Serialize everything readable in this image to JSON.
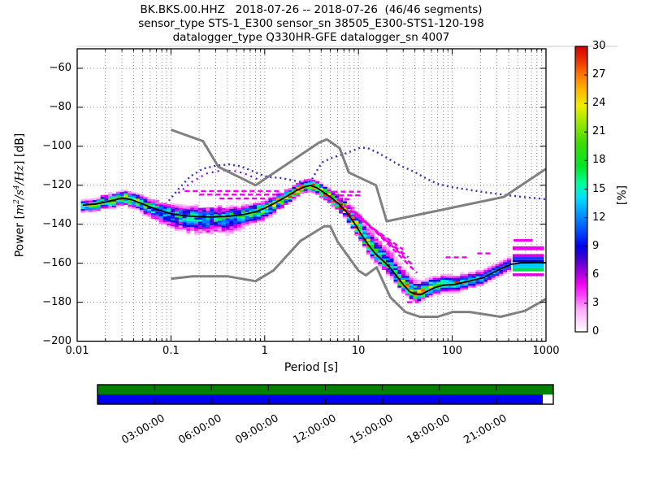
{
  "title": {
    "line1": "BK.BKS.00.HHZ   2018-07-26 -- 2018-07-26  (46/46 segments)",
    "line2": "sensor_type STS-1_E300 sensor_sn 38505_E300-STS1-120-198",
    "line3": "datalogger_type Q330HR-GFE datalogger_sn 4007"
  },
  "axes": {
    "xlabel": "Period [s]",
    "colorbar_label": "[%]",
    "ylabel_parts": {
      "p1": "Power [",
      "m1": "m",
      "e1": "2",
      "m2": "/s",
      "e2": "4",
      "m3": "/Hz",
      "p2": "] [dB]"
    }
  },
  "chart_data": {
    "type": "heatmap",
    "title": "BK.BKS.00.HHZ 2018-07-26 -- 2018-07-26 (46/46 segments)",
    "xlabel": "Period [s]",
    "ylabel": "Power [m^2/s^4/Hz] [dB]",
    "x_axis": {
      "scale": "log",
      "min": 0.01,
      "max": 1000,
      "tick_values": [
        0.01,
        0.1,
        1,
        10,
        100,
        1000
      ],
      "tick_labels": [
        "0.01",
        "0.1",
        "1",
        "10",
        "100",
        "1000"
      ]
    },
    "y_axis": {
      "min": -200,
      "max": -50,
      "tick_values": [
        -60,
        -80,
        -100,
        -120,
        -140,
        -160,
        -180,
        -200
      ],
      "tick_labels": [
        "−60",
        "−80",
        "−100",
        "−120",
        "−140",
        "−160",
        "−180",
        "−200"
      ]
    },
    "colorbar": {
      "min": 0,
      "max": 30,
      "label": "[%]",
      "tick_values": [
        0,
        3,
        6,
        9,
        12,
        15,
        18,
        21,
        24,
        27,
        30
      ],
      "tick_labels": [
        "0",
        "3",
        "6",
        "9",
        "12",
        "15",
        "18",
        "21",
        "24",
        "27",
        "30"
      ],
      "stops": [
        [
          0,
          "#ffffff"
        ],
        [
          0.08,
          "#ffaaff"
        ],
        [
          0.13,
          "#ff3cff"
        ],
        [
          0.17,
          "#ee00ee"
        ],
        [
          0.22,
          "#8c00dc"
        ],
        [
          0.26,
          "#3c00d2"
        ],
        [
          0.3,
          "#0000ee"
        ],
        [
          0.36,
          "#0055ff"
        ],
        [
          0.42,
          "#00a0ff"
        ],
        [
          0.47,
          "#00e1ff"
        ],
        [
          0.52,
          "#00ff96"
        ],
        [
          0.58,
          "#00e628"
        ],
        [
          0.66,
          "#3cdc00"
        ],
        [
          0.73,
          "#96e600"
        ],
        [
          0.79,
          "#eeee00"
        ],
        [
          0.85,
          "#ffb400"
        ],
        [
          0.9,
          "#ff7800"
        ],
        [
          0.95,
          "#eb3200"
        ],
        [
          1,
          "#d70000"
        ]
      ]
    },
    "mode_line": [
      [
        0.0115,
        -130.2
      ],
      [
        0.016,
        -129.6
      ],
      [
        0.022,
        -128.2
      ],
      [
        0.03,
        -126.6
      ],
      [
        0.038,
        -127.4
      ],
      [
        0.05,
        -129.6
      ],
      [
        0.07,
        -132.4
      ],
      [
        0.1,
        -134.6
      ],
      [
        0.15,
        -135.8
      ],
      [
        0.25,
        -136.3
      ],
      [
        0.4,
        -136.0
      ],
      [
        0.6,
        -135.0
      ],
      [
        0.8,
        -133.6
      ],
      [
        1.0,
        -131.8
      ],
      [
        1.3,
        -129.0
      ],
      [
        1.7,
        -125.8
      ],
      [
        2.2,
        -122.6
      ],
      [
        2.7,
        -120.7
      ],
      [
        3.1,
        -120.1
      ],
      [
        3.6,
        -121.3
      ],
      [
        4.3,
        -123.8
      ],
      [
        5.2,
        -126.6
      ],
      [
        6.2,
        -129.6
      ],
      [
        7.4,
        -133.6
      ],
      [
        8.9,
        -139.0
      ],
      [
        10.5,
        -144.5
      ],
      [
        12.5,
        -150.0
      ],
      [
        15,
        -155.0
      ],
      [
        18,
        -158.5
      ],
      [
        21,
        -161.5
      ],
      [
        25,
        -166.0
      ],
      [
        30,
        -171.0
      ],
      [
        35,
        -174.5
      ],
      [
        40,
        -175.8
      ],
      [
        47,
        -175.9
      ],
      [
        55,
        -174.2
      ],
      [
        65,
        -172.5
      ],
      [
        80,
        -171.3
      ],
      [
        107,
        -170.9
      ],
      [
        150,
        -169.2
      ],
      [
        215,
        -167.4
      ],
      [
        310,
        -163.4
      ],
      [
        430,
        -160.5
      ],
      [
        540,
        -159.8
      ],
      [
        1000,
        -159.7
      ]
    ],
    "nlnm": [
      [
        0.1,
        -168.0
      ],
      [
        0.17,
        -166.7
      ],
      [
        0.4,
        -166.7
      ],
      [
        0.8,
        -169.2
      ],
      [
        1.24,
        -163.7
      ],
      [
        2.4,
        -148.6
      ],
      [
        4.3,
        -141.1
      ],
      [
        5.0,
        -141.1
      ],
      [
        6.0,
        -149.0
      ],
      [
        10.0,
        -163.8
      ],
      [
        12.0,
        -166.2
      ],
      [
        15.6,
        -162.1
      ],
      [
        21.9,
        -177.5
      ],
      [
        31.6,
        -185.0
      ],
      [
        45.0,
        -187.5
      ],
      [
        70.0,
        -187.5
      ],
      [
        101.0,
        -185.0
      ],
      [
        154.0,
        -185.0
      ],
      [
        328.0,
        -187.5
      ],
      [
        600.0,
        -184.4
      ],
      [
        1000,
        -178.3
      ]
    ],
    "nhnm": [
      [
        0.1,
        -91.5
      ],
      [
        0.22,
        -97.4
      ],
      [
        0.32,
        -110.5
      ],
      [
        0.8,
        -120.0
      ],
      [
        3.8,
        -98.1
      ],
      [
        4.6,
        -96.5
      ],
      [
        6.3,
        -101.0
      ],
      [
        7.9,
        -113.5
      ],
      [
        15.4,
        -120.0
      ],
      [
        20.0,
        -138.5
      ],
      [
        354.8,
        -126.0
      ],
      [
        1000,
        -111.6
      ]
    ],
    "eq_trace": [
      [
        0.095,
        -128
      ],
      [
        0.12,
        -122
      ],
      [
        0.16,
        -115.5
      ],
      [
        0.22,
        -111.5
      ],
      [
        0.3,
        -110.0
      ],
      [
        0.42,
        -109.3
      ],
      [
        0.55,
        -110.3
      ],
      [
        0.7,
        -112.2
      ],
      [
        0.9,
        -114.5
      ],
      [
        1.1,
        -115.8
      ],
      [
        1.5,
        -116.3
      ],
      [
        2.0,
        -117.5
      ],
      [
        2.6,
        -118.6
      ],
      [
        3.1,
        -118.0
      ],
      [
        3.6,
        -112.5
      ],
      [
        4.1,
        -108.3
      ],
      [
        5.2,
        -106.0
      ],
      [
        7.5,
        -103.5
      ],
      [
        10.5,
        -100.7
      ],
      [
        12.5,
        -100.9
      ],
      [
        16,
        -103.3
      ],
      [
        21,
        -106.5
      ],
      [
        28,
        -110.0
      ],
      [
        39,
        -113.0
      ],
      [
        55,
        -117.0
      ],
      [
        70,
        -119.3
      ],
      [
        100,
        -121.0
      ],
      [
        150,
        -122.3
      ],
      [
        230,
        -123.7
      ],
      [
        350,
        -124.8
      ],
      [
        550,
        -126.0
      ],
      [
        800,
        -126.7
      ],
      [
        1000,
        -127.2
      ]
    ],
    "eq_trace2": [
      [
        0.12,
        -124
      ],
      [
        0.17,
        -118
      ],
      [
        0.24,
        -114
      ],
      [
        0.35,
        -112.3
      ],
      [
        0.5,
        -112.8
      ],
      [
        0.65,
        -114.5
      ],
      [
        0.85,
        -117.0
      ]
    ],
    "outlier_segments": [
      [
        [
          0.14,
          -123
        ],
        [
          1.45,
          -123
        ]
      ],
      [
        [
          0.2,
          -124.8
        ],
        [
          1.6,
          -124.8
        ]
      ],
      [
        [
          0.33,
          -126.8
        ],
        [
          1.25,
          -126.8
        ]
      ],
      [
        [
          5.3,
          -123.3
        ],
        [
          10.5,
          -123.3
        ]
      ],
      [
        [
          6.2,
          -125.2
        ],
        [
          11,
          -125.2
        ]
      ],
      [
        [
          4.8,
          -127.2
        ],
        [
          8.6,
          -127.2
        ]
      ],
      [
        [
          4.6,
          -125.5
        ],
        [
          30,
          -153
        ]
      ],
      [
        [
          6.0,
          -127.5
        ],
        [
          34,
          -157
        ]
      ],
      [
        [
          7.8,
          -130.5
        ],
        [
          38,
          -161
        ]
      ],
      [
        [
          10,
          -135
        ],
        [
          42,
          -165
        ]
      ],
      [
        [
          13,
          -141
        ],
        [
          30,
          -155.5
        ]
      ],
      [
        [
          185,
          -155
        ],
        [
          258,
          -155
        ]
      ],
      [
        [
          85,
          -157
        ],
        [
          150,
          -157
        ]
      ],
      [
        [
          450,
          -148.2
        ],
        [
          700,
          -148.2
        ]
      ],
      [
        [
          33,
          -180
        ],
        [
          44,
          -180
        ]
      ]
    ],
    "right_bands": [
      {
        "p": [
          460,
          720
        ],
        "db": [
          -147.6,
          -148.9
        ],
        "color": "#ee00ee"
      },
      {
        "p": [
          440,
          950
        ],
        "db": [
          -151.3,
          -153.3
        ],
        "color": "#ee00ee"
      },
      {
        "p": [
          440,
          950
        ],
        "db": [
          -155.3,
          -156.8
        ],
        "color": "#dd00dd"
      },
      {
        "p": [
          440,
          950
        ],
        "db": [
          -156.8,
          -158.4
        ],
        "color": "#2233ff"
      },
      {
        "p": [
          440,
          950
        ],
        "db": [
          -158.4,
          -159.5
        ],
        "color": "#0000bb"
      },
      {
        "p": [
          440,
          950
        ],
        "db": [
          -160.1,
          -162.6
        ],
        "color": "#00ccff"
      },
      {
        "p": [
          440,
          950
        ],
        "db": [
          -162.6,
          -164.2
        ],
        "color": "#00dd55"
      },
      {
        "p": [
          440,
          950
        ],
        "db": [
          -165.2,
          -166.6
        ],
        "color": "#dd00dd"
      }
    ],
    "extra_cells": [
      {
        "p": 112,
        "db": -169.8,
        "color": "#dd2200"
      },
      {
        "p": 121,
        "db": -170.3,
        "color": "#dd2200"
      },
      {
        "p": 131,
        "db": -170.0,
        "color": "#ee8800"
      }
    ],
    "hist": {
      "p_start": 0.0115,
      "p_end": 430,
      "step_decade": 0.0417,
      "cell_db": 1,
      "seed": 7,
      "pmax_profile": [
        [
          0.0115,
          18
        ],
        [
          0.02,
          20
        ],
        [
          0.03,
          24
        ],
        [
          0.045,
          18
        ],
        [
          0.07,
          14
        ],
        [
          0.12,
          13
        ],
        [
          0.3,
          13
        ],
        [
          0.6,
          15
        ],
        [
          1.0,
          18
        ],
        [
          1.5,
          23
        ],
        [
          2.2,
          27
        ],
        [
          3.0,
          30
        ],
        [
          4.5,
          29
        ],
        [
          6,
          27
        ],
        [
          8,
          26
        ],
        [
          12,
          22
        ],
        [
          16,
          16
        ],
        [
          22,
          14
        ],
        [
          28,
          20
        ],
        [
          35,
          27
        ],
        [
          45,
          24
        ],
        [
          55,
          21
        ],
        [
          80,
          18
        ],
        [
          120,
          16
        ],
        [
          200,
          14
        ],
        [
          300,
          12
        ],
        [
          430,
          11
        ]
      ],
      "sigma_above": [
        [
          0.0115,
          2.2
        ],
        [
          0.03,
          2.5
        ],
        [
          0.08,
          3.2
        ],
        [
          0.2,
          4
        ],
        [
          0.5,
          3.5
        ],
        [
          1,
          3
        ],
        [
          2,
          2.2
        ],
        [
          3.5,
          2.2
        ],
        [
          6,
          3
        ],
        [
          9,
          5
        ],
        [
          14,
          6.5
        ],
        [
          25,
          6
        ],
        [
          35,
          5
        ],
        [
          50,
          4
        ],
        [
          80,
          3.5
        ],
        [
          150,
          3.2
        ],
        [
          430,
          3
        ]
      ],
      "sigma_below": [
        [
          0.0115,
          2.2
        ],
        [
          0.04,
          2.6
        ],
        [
          0.07,
          4.5
        ],
        [
          0.12,
          6
        ],
        [
          0.25,
          6.5
        ],
        [
          0.45,
          6
        ],
        [
          0.7,
          4.5
        ],
        [
          1.0,
          4
        ],
        [
          1.6,
          3
        ],
        [
          2.5,
          2.2
        ],
        [
          4,
          2.2
        ],
        [
          7,
          2.4
        ],
        [
          12,
          3
        ],
        [
          20,
          3.5
        ],
        [
          30,
          2.8
        ],
        [
          45,
          2.5
        ],
        [
          80,
          2.8
        ],
        [
          150,
          2.6
        ],
        [
          430,
          2.4
        ]
      ]
    },
    "coverage": {
      "tick_hours": [
        3,
        6,
        9,
        12,
        15,
        18,
        21
      ],
      "tick_labels": [
        "03:00:00",
        "06:00:00",
        "09:00:00",
        "12:00:00",
        "15:00:00",
        "18:00:00",
        "21:00:00"
      ],
      "hours_total": 24,
      "green_frac": [
        0,
        1
      ],
      "blue_frac": [
        0,
        0.977
      ],
      "green_color": "#008000",
      "blue_color": "#0000ee"
    },
    "colors": {
      "grid": "#8a8a8a",
      "noise_model": "#808080",
      "mode": "#000000",
      "eq": "#3333cc",
      "eq2": "#8800dd",
      "magenta": "#ee00ee",
      "frame": "#000000"
    }
  }
}
